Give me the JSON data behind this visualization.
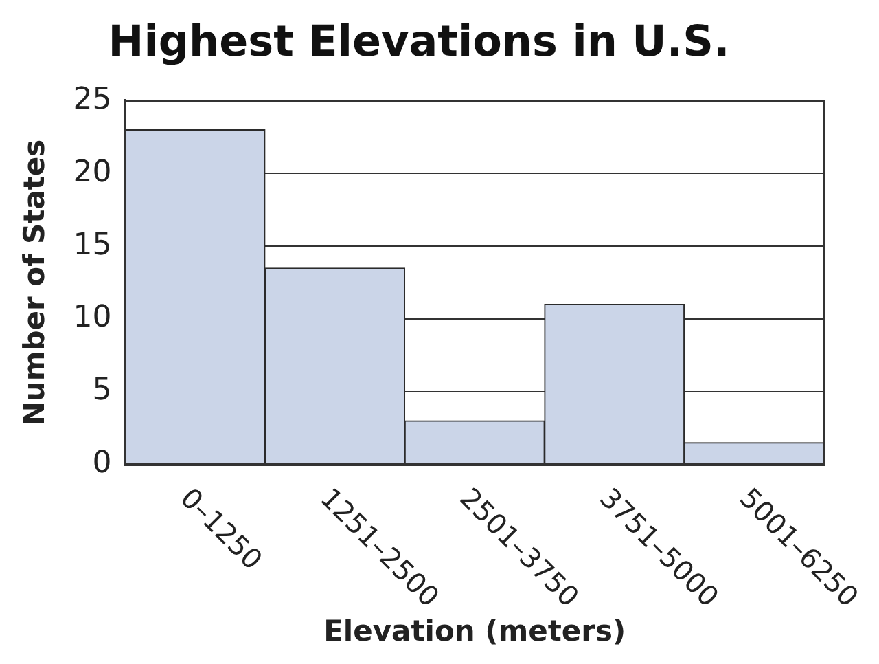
{
  "chart_data": {
    "type": "bar",
    "title": "Highest Elevations in U.S.",
    "xlabel": "Elevation (meters)",
    "ylabel": "Number of States",
    "categories": [
      "0–1250",
      "1251–2500",
      "2501–3750",
      "3751–5000",
      "5001–6250"
    ],
    "values": [
      23,
      13.5,
      3,
      11,
      1.5
    ],
    "color": "#cbd5e8",
    "ylim": [
      0,
      25
    ],
    "yticks": [
      0,
      5,
      10,
      15,
      20,
      25
    ],
    "grid": "y"
  }
}
